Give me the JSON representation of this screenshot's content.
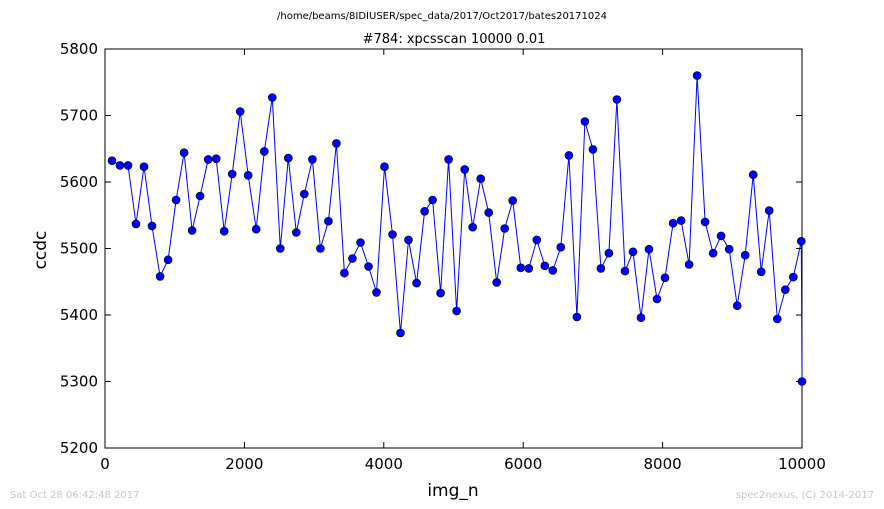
{
  "suptitle": "/home/beams/8IDIUSER/spec_data/2017/Oct2017/bates20171024",
  "footer_left": "Sat Oct 28 06:42:48 2017",
  "footer_right": "spec2nexus, (C) 2014-2017",
  "colors": {
    "series": "#0000ff",
    "marker_edge": "#000000",
    "footer": "#c8c8c8"
  },
  "chart_data": {
    "type": "line",
    "title": "#784: xpcsscan 10000 0.01",
    "xlabel": "img_n",
    "ylabel": "ccdc",
    "xlim": [
      0,
      10000
    ],
    "ylim": [
      5200,
      5800
    ],
    "xticks": [
      "0",
      "2000",
      "4000",
      "6000",
      "8000",
      "10000"
    ],
    "yticks": [
      "5200",
      "5300",
      "5400",
      "5500",
      "5600",
      "5700",
      "5800"
    ],
    "grid": false,
    "markers": "circle",
    "series": [
      {
        "x": [
          100,
          215,
          330,
          445,
          560,
          675,
          790,
          905,
          1020,
          1135,
          1250,
          1365,
          1480,
          1595,
          1710,
          1825,
          1940,
          2055,
          2170,
          2285,
          2400,
          2515,
          2630,
          2745,
          2860,
          2975,
          3090,
          3205,
          3320,
          3435,
          3550,
          3665,
          3780,
          3895,
          4010,
          4125,
          4240,
          4355,
          4470,
          4585,
          4700,
          4815,
          4930,
          5045,
          5160,
          5275,
          5390,
          5505,
          5620,
          5735,
          5850,
          5965,
          6080,
          6195,
          6310,
          6425,
          6540,
          6655,
          6770,
          6885,
          7000,
          7115,
          7230,
          7345,
          7460,
          7575,
          7690,
          7805,
          7920,
          8035,
          8150,
          8265,
          8380,
          8495,
          8610,
          8725,
          8840,
          8955,
          9070,
          9185,
          9300,
          9415,
          9530,
          9645,
          9760,
          9875,
          9990
        ],
        "y": [
          5632,
          5625,
          5625,
          5537,
          5623,
          5534,
          5458,
          5483,
          5573,
          5644,
          5527,
          5579,
          5634,
          5635,
          5526,
          5612,
          5706,
          5610,
          5529,
          5646,
          5727,
          5500,
          5636,
          5524,
          5582,
          5634,
          5500,
          5541,
          5658,
          5463,
          5485,
          5509,
          5473,
          5434,
          5623,
          5521,
          5373,
          5513,
          5448,
          5556,
          5573,
          5433,
          5634,
          5406,
          5619,
          5532,
          5605,
          5554,
          5449,
          5530,
          5572,
          5471,
          5470,
          5513,
          5474,
          5467,
          5502,
          5640,
          5397,
          5691,
          5649,
          5470,
          5493,
          5724,
          5466,
          5495,
          5396,
          5499,
          5424,
          5456,
          5538,
          5542,
          5476,
          5760,
          5540,
          5493,
          5519,
          5499,
          5414,
          5490,
          5611,
          5465,
          5557,
          5394,
          5438,
          5457,
          5511
        ]
      }
    ],
    "last_point": {
      "x": 10000,
      "y": 5300
    }
  }
}
